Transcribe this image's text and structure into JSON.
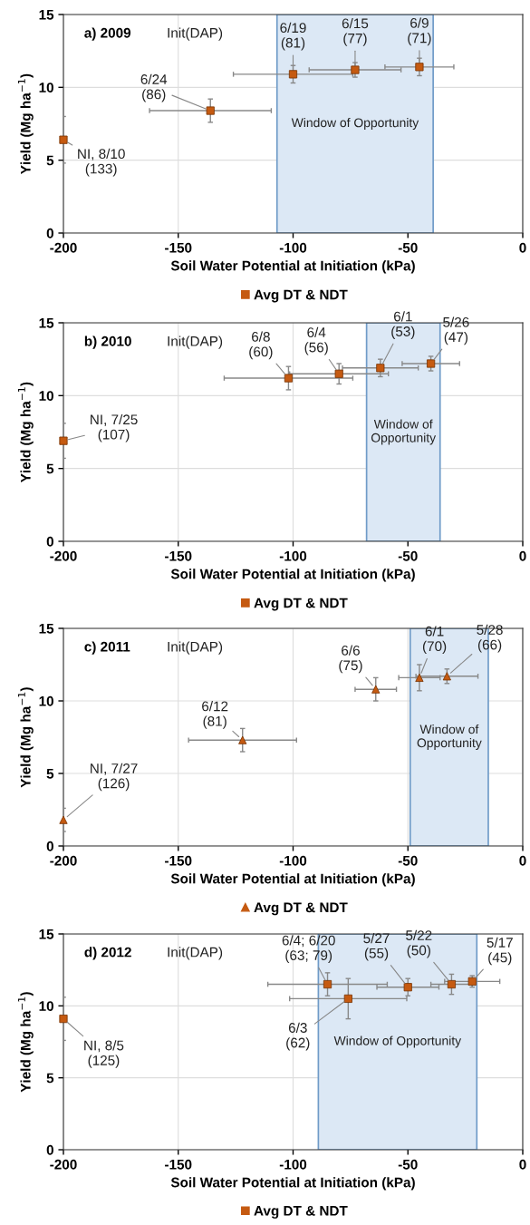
{
  "chart_data": [
    {
      "type": "scatter",
      "title": "a) 2009",
      "xlabel": "Soil Water Potential at Initiation (kPa)",
      "ylabel": "Yield (Mg ha$^{−1}$)",
      "x": [
        -200,
        -136,
        -100,
        -73,
        -45
      ],
      "series": [
        {
          "name": "Avg DT & NDT",
          "color": "#c55a11",
          "marker": "square",
          "values": [
            6.4,
            8.4,
            10.9,
            11.2,
            11.4
          ],
          "errors": [
            1.6,
            0.8,
            0.6,
            0.5,
            0.6
          ],
          "xerrors": [
            null,
            26.5,
            26,
            20,
            15
          ]
        }
      ],
      "xlim": [
        -200,
        0
      ],
      "ylim": [
        0,
        15
      ],
      "xticks": [
        -200,
        -150,
        -100,
        -50,
        0
      ],
      "yticks": [
        0,
        5,
        10,
        15
      ],
      "grid": true,
      "legend": "bottom",
      "bands": [
        {
          "axis": "x",
          "from": -107,
          "to": -39,
          "label": "Window of Opportunity",
          "color": "#dce8f5"
        }
      ],
      "annotations": [
        "Init(DAP)",
        {
          "text": "NI, 8/10\n(133)",
          "x": -200,
          "y": 6.4
        },
        {
          "text": "6/24\n(86)",
          "x": -136,
          "y": 8.4
        },
        {
          "text": "6/19\n(81)",
          "x": -100,
          "y": 10.9
        },
        {
          "text": "6/15\n(77)",
          "x": -73,
          "y": 11.2
        },
        {
          "text": "6/9\n(71)",
          "x": -45,
          "y": 11.4
        }
      ]
    },
    {
      "type": "scatter",
      "title": "b) 2010",
      "xlabel": "Soil Water Potential at Initiation (kPa)",
      "ylabel": "Yield (Mg ha$^{−1}$)",
      "x": [
        -200,
        -102,
        -80,
        -62,
        -40
      ],
      "series": [
        {
          "name": "Avg DT & NDT",
          "color": "#c55a11",
          "marker": "square",
          "values": [
            6.9,
            11.2,
            11.5,
            11.9,
            12.2
          ],
          "errors": [
            1.2,
            0.8,
            0.7,
            0.6,
            0.5
          ],
          "xerrors": [
            null,
            28,
            21.5,
            16.5,
            12.5
          ]
        }
      ],
      "xlim": [
        -200,
        0
      ],
      "ylim": [
        0,
        15
      ],
      "xticks": [
        -200,
        -150,
        -100,
        -50,
        0
      ],
      "yticks": [
        0,
        5,
        10,
        15
      ],
      "grid": true,
      "legend": "bottom",
      "bands": [
        {
          "axis": "x",
          "from": -68,
          "to": -36,
          "label": "Window of\nOpportunity",
          "color": "#dce8f5"
        }
      ],
      "annotations": [
        "Init(DAP)",
        {
          "text": "NI, 7/25\n(107)",
          "x": -200,
          "y": 6.9
        },
        {
          "text": "6/8\n(60)",
          "x": -102,
          "y": 11.2
        },
        {
          "text": "6/4\n(56)",
          "x": -80,
          "y": 11.5
        },
        {
          "text": "6/1\n(53)",
          "x": -62,
          "y": 11.9
        },
        {
          "text": "5/26\n(47)",
          "x": -40,
          "y": 12.2
        }
      ]
    },
    {
      "type": "scatter",
      "title": "c) 2011",
      "xlabel": "Soil Water Potential at Initiation (kPa)",
      "ylabel": "Yield (Mg ha$^{−1}$)",
      "x": [
        -200,
        -122,
        -64,
        -45,
        -33
      ],
      "series": [
        {
          "name": "Avg DT & NDT",
          "color": "#c55a11",
          "marker": "triangle",
          "values": [
            1.8,
            7.3,
            10.8,
            11.6,
            11.7
          ],
          "errors": [
            0.8,
            0.8,
            0.8,
            0.9,
            0.5
          ],
          "xerrors": [
            null,
            23.5,
            9,
            9,
            13.5
          ]
        }
      ],
      "xlim": [
        -200,
        0
      ],
      "ylim": [
        0,
        15
      ],
      "xticks": [
        -200,
        -150,
        -100,
        -50,
        0
      ],
      "yticks": [
        0,
        5,
        10,
        15
      ],
      "grid": true,
      "legend": "bottom",
      "bands": [
        {
          "axis": "x",
          "from": -49,
          "to": -15,
          "label": "Window of\nOpportunity",
          "color": "#dce8f5"
        }
      ],
      "annotations": [
        "Init(DAP)",
        {
          "text": "NI, 7/27\n(126)",
          "x": -200,
          "y": 1.8
        },
        {
          "text": "6/12\n(81)",
          "x": -122,
          "y": 7.3
        },
        {
          "text": "6/6\n(75)",
          "x": -64,
          "y": 10.8
        },
        {
          "text": "6/1\n(70)",
          "x": -45,
          "y": 11.6
        },
        {
          "text": "5/28\n(66)",
          "x": -33,
          "y": 11.7
        }
      ]
    },
    {
      "type": "scatter",
      "title": "d) 2012",
      "xlabel": "Soil Water Potential at Initiation (kPa)",
      "ylabel": "Yield (Mg ha$^{−1}$)",
      "x": [
        -200,
        -85,
        -76,
        -50,
        -31,
        -22
      ],
      "series": [
        {
          "name": "Avg DT & NDT",
          "color": "#c55a11",
          "marker": "square",
          "values": [
            9.1,
            11.5,
            10.5,
            11.3,
            11.5,
            11.7
          ],
          "errors": [
            1.5,
            0.8,
            1.4,
            0.6,
            0.7,
            0.4
          ],
          "xerrors": [
            null,
            26,
            25.5,
            13.5,
            9,
            12
          ]
        }
      ],
      "xlim": [
        -200,
        0
      ],
      "ylim": [
        0,
        15
      ],
      "xticks": [
        -200,
        -150,
        -100,
        -50,
        0
      ],
      "yticks": [
        0,
        5,
        10,
        15
      ],
      "grid": true,
      "legend": "bottom",
      "bands": [
        {
          "axis": "x",
          "from": -89,
          "to": -20,
          "label": "Window of Opportunity",
          "color": "#dce8f5"
        }
      ],
      "annotations": [
        "Init(DAP)",
        {
          "text": "NI, 8/5\n(125)",
          "x": -200,
          "y": 9.1
        },
        {
          "text": "6/4; 6/20\n(63; 79)",
          "x": -85,
          "y": 11.5
        },
        {
          "text": "6/3\n(62)",
          "x": -76,
          "y": 10.5
        },
        {
          "text": "5/27\n(55)",
          "x": -50,
          "y": 11.3
        },
        {
          "text": "5/22\n(50)",
          "x": -31,
          "y": 11.5
        },
        {
          "text": "5/17\n(45)",
          "x": -22,
          "y": 11.7
        }
      ]
    }
  ]
}
